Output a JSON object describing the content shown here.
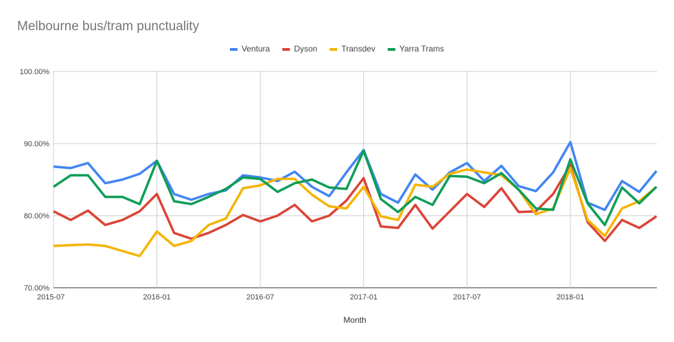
{
  "chart_data": {
    "type": "line",
    "title": "Melbourne bus/tram punctuality",
    "xlabel": "Month",
    "ylabel": "",
    "ylim": [
      70,
      100
    ],
    "ylim_labels": [
      "70.00%",
      "80.00%",
      "90.00%",
      "100.00%"
    ],
    "yticks": [
      70,
      80,
      90,
      100
    ],
    "x": [
      "2015-07",
      "2015-08",
      "2015-09",
      "2015-10",
      "2015-11",
      "2015-12",
      "2016-01",
      "2016-02",
      "2016-03",
      "2016-04",
      "2016-05",
      "2016-06",
      "2016-07",
      "2016-08",
      "2016-09",
      "2016-10",
      "2016-11",
      "2016-12",
      "2017-01",
      "2017-02",
      "2017-03",
      "2017-04",
      "2017-05",
      "2017-06",
      "2017-07",
      "2017-08",
      "2017-09",
      "2017-10",
      "2017-11",
      "2017-12",
      "2018-01",
      "2018-02",
      "2018-03",
      "2018-04",
      "2018-05",
      "2018-06"
    ],
    "xticks": [
      "2015-07",
      "2016-01",
      "2016-07",
      "2017-01",
      "2017-07",
      "2018-01"
    ],
    "grid": true,
    "legend_position": "top",
    "series": [
      {
        "name": "Ventura",
        "color": "#4285f4",
        "values": [
          86.8,
          86.6,
          87.3,
          84.5,
          85.0,
          85.8,
          87.6,
          83.0,
          82.2,
          83.0,
          83.5,
          85.6,
          85.3,
          84.8,
          86.1,
          84.0,
          82.7,
          86.0,
          89.1,
          83.0,
          81.8,
          85.7,
          83.6,
          86.0,
          87.3,
          84.8,
          86.9,
          84.1,
          83.4,
          86.0,
          90.2,
          81.8,
          80.8,
          84.8,
          83.3,
          86.2
        ]
      },
      {
        "name": "Dyson",
        "color": "#db4437",
        "values": [
          80.6,
          79.4,
          80.7,
          78.7,
          79.4,
          80.6,
          83.0,
          77.6,
          76.8,
          77.6,
          78.7,
          80.1,
          79.2,
          80.0,
          81.5,
          79.2,
          80.0,
          82.1,
          85.2,
          78.5,
          78.3,
          81.5,
          78.2,
          80.6,
          83.0,
          81.2,
          83.8,
          80.5,
          80.6,
          83.0,
          87.0,
          79.1,
          76.5,
          79.4,
          78.3,
          79.9
        ]
      },
      {
        "name": "Transdev",
        "color": "#f4b400",
        "values": [
          75.8,
          75.9,
          76.0,
          75.8,
          75.1,
          74.4,
          77.8,
          75.8,
          76.5,
          78.7,
          79.6,
          83.8,
          84.2,
          85.1,
          85.1,
          82.9,
          81.3,
          81.0,
          84.0,
          79.9,
          79.4,
          84.3,
          84.0,
          85.8,
          86.4,
          86.0,
          85.6,
          83.6,
          80.2,
          81.0,
          86.6,
          79.4,
          77.2,
          81.0,
          82.0,
          84.0
        ]
      },
      {
        "name": "Yarra Trams",
        "color": "#0f9d58",
        "values": [
          84.0,
          85.6,
          85.6,
          82.6,
          82.6,
          81.6,
          87.6,
          82.0,
          81.6,
          82.6,
          83.7,
          85.3,
          85.1,
          83.3,
          84.5,
          85.0,
          83.9,
          83.7,
          89.0,
          82.3,
          80.5,
          82.6,
          81.5,
          85.5,
          85.4,
          84.5,
          85.9,
          83.6,
          81.0,
          80.8,
          87.8,
          81.7,
          78.7,
          83.9,
          81.7,
          84.0
        ]
      }
    ]
  }
}
